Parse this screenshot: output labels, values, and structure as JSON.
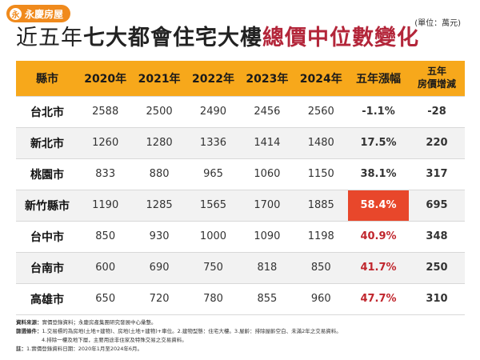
{
  "logo": {
    "mark": "永",
    "text": "永慶房屋"
  },
  "title": {
    "part1": "近五年",
    "part2": "七大都會住宅大樓",
    "part3": "總價中位數變化"
  },
  "unit": "(單位：萬元)",
  "chart_data": {
    "type": "table",
    "columns": [
      "縣市",
      "2020年",
      "2021年",
      "2022年",
      "2023年",
      "2024年",
      "五年漲幅",
      "五年\n房價增減"
    ],
    "rows": [
      {
        "city": "台北市",
        "values": [
          2588,
          2500,
          2490,
          2456,
          2560
        ],
        "growth": "-1.1%",
        "change": "-28"
      },
      {
        "city": "新北市",
        "values": [
          1260,
          1280,
          1336,
          1414,
          1480
        ],
        "growth": "17.5%",
        "change": "220"
      },
      {
        "city": "桃園市",
        "values": [
          833,
          880,
          965,
          1060,
          1150
        ],
        "growth": "38.1%",
        "change": "317"
      },
      {
        "city": "新竹縣市",
        "values": [
          1190,
          1285,
          1565,
          1700,
          1885
        ],
        "growth": "58.4%",
        "change": "695"
      },
      {
        "city": "台中市",
        "values": [
          850,
          930,
          1000,
          1090,
          1198
        ],
        "growth": "40.9%",
        "change": "348"
      },
      {
        "city": "台南市",
        "values": [
          600,
          690,
          750,
          818,
          850
        ],
        "growth": "41.7%",
        "change": "250"
      },
      {
        "city": "高雄市",
        "values": [
          650,
          720,
          780,
          855,
          960
        ],
        "growth": "47.7%",
        "change": "310"
      }
    ]
  },
  "notes": {
    "source_label": "資料來源：",
    "source": "實價登錄資料；永慶房產集團研究發展中心彙整。",
    "cond_label": "篩選條件：",
    "cond1": "1.交易標的為房地(土地+建物)、房地(土地+建物)+車位。2.建物型態：住宅大樓。3.屋齡：排除屋齡空白、未滿2年之交易資料。",
    "cond2": "4.排除一樓及地下層，主要用途非住家及特殊交易之交易資料。",
    "note_label": "註：",
    "note": "1.實價登錄資料日期：2020年1月至2024年6月。"
  },
  "colors": {
    "header": "#f7a81b",
    "highlight": "#e8472b",
    "accent_red": "#c0262d",
    "logo": "#f08a1c"
  }
}
